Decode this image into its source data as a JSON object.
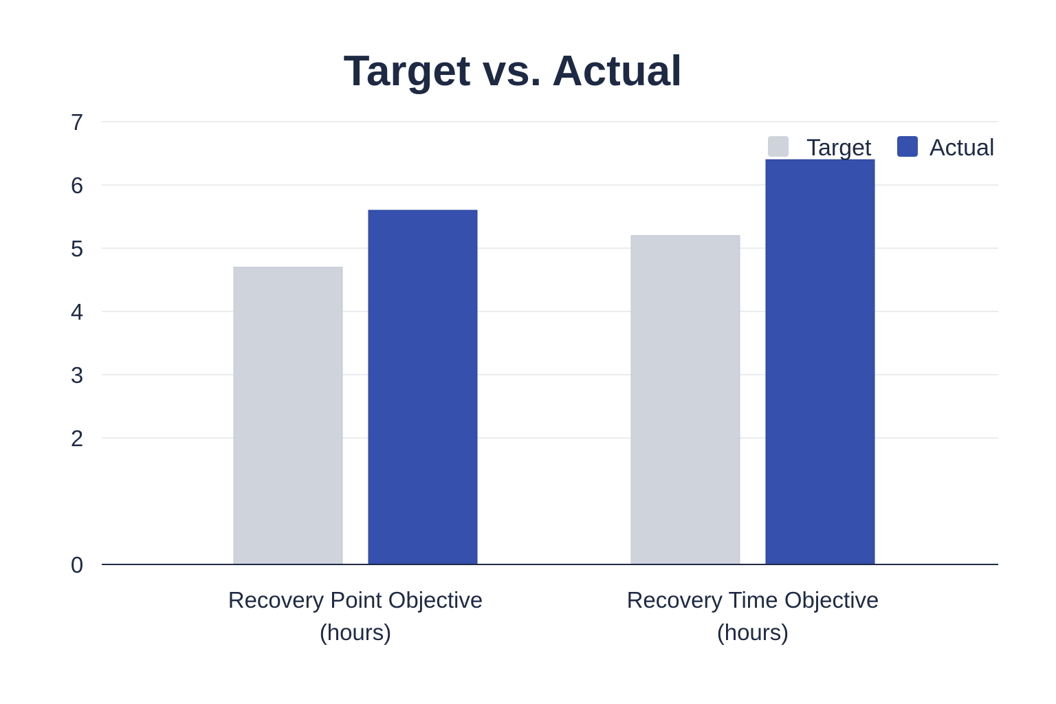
{
  "chart_data": {
    "type": "bar",
    "title": "Target vs. Actual",
    "categories": [
      [
        "Recovery Point Objective",
        "(hours)"
      ],
      [
        "Recovery Time Objective",
        "(hours)"
      ]
    ],
    "series": [
      {
        "name": "Target",
        "values": [
          4.7,
          5.2
        ],
        "color": "#cfd3dc"
      },
      {
        "name": "Actual",
        "values": [
          5.6,
          6.4
        ],
        "color": "#3550ad"
      }
    ],
    "y_ticks": [
      0,
      2,
      3,
      4,
      5,
      6,
      7
    ],
    "ylim": [
      0,
      7
    ],
    "xlabel": "",
    "ylabel": "",
    "grid": true,
    "legend_position": "top-right"
  }
}
